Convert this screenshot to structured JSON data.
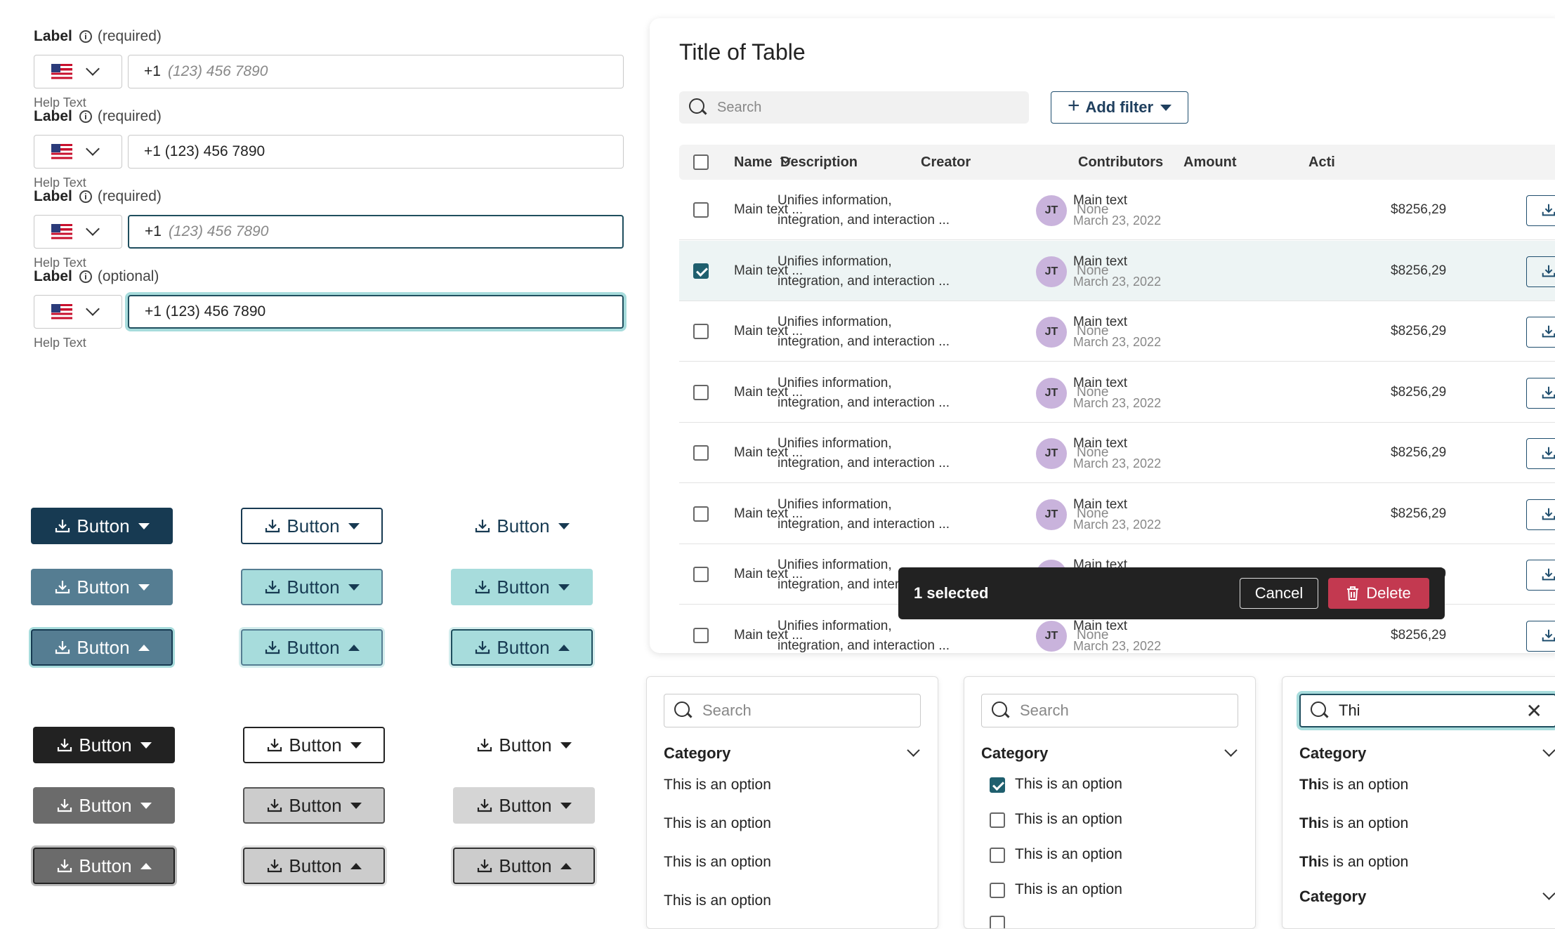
{
  "phone_fields": [
    {
      "label": "Label",
      "tag": "(required)",
      "prefix": "+1",
      "value": "",
      "placeholder": "(123) 456 7890",
      "help": "Help Text",
      "state": "default"
    },
    {
      "label": "Label",
      "tag": "(required)",
      "prefix": "",
      "value": "+1 (123) 456 7890",
      "placeholder": "",
      "help": "Help Text",
      "state": "filled"
    },
    {
      "label": "Label",
      "tag": "(required)",
      "prefix": "+1",
      "value": "",
      "placeholder": "(123) 456 7890",
      "help": "Help Text",
      "state": "focused"
    },
    {
      "label": "Label",
      "tag": "(optional)",
      "prefix": "",
      "value": "+1 (123) 456 7890",
      "placeholder": "",
      "help": "Help Text",
      "state": "focused-filled"
    }
  ],
  "button_label": "Button",
  "table": {
    "title": "Title of Table",
    "search_placeholder": "Search",
    "add_filter": "Add filter",
    "columns": [
      "Name",
      "Description",
      "Creator",
      "Contributors",
      "Amount",
      "Acti"
    ],
    "row": {
      "name": "Main text ...",
      "desc1": "Unifies information,",
      "desc2": "integration, and interaction ...",
      "initials": "JT",
      "creator": "Main text",
      "date": "March 23, 2022",
      "contributors": "None",
      "amount": "$8256,29"
    },
    "selected_row": 1,
    "snackbar": {
      "count": "1 selected",
      "cancel": "Cancel",
      "delete": "Delete"
    }
  },
  "panels": [
    {
      "search": "Search",
      "category": "Category",
      "options": [
        "This is an option",
        "This is an option",
        "This is an option",
        "This is an option"
      ]
    },
    {
      "search": "Search",
      "category": "Category",
      "options": [
        "This is an option",
        "This is an option",
        "This is an option",
        "This is an option"
      ],
      "checked": [
        true,
        false,
        false,
        false
      ]
    },
    {
      "search": "Thi",
      "category": "Category",
      "match": "Thi",
      "rest": "s is an option",
      "options_count": 3,
      "category2": "Category"
    }
  ],
  "colors": {
    "navy": "#173a52",
    "teal_light": "#a7dcdc",
    "teal_dark": "#1f5f6e",
    "slate": "#4f7386",
    "delete_red": "#c33950"
  }
}
